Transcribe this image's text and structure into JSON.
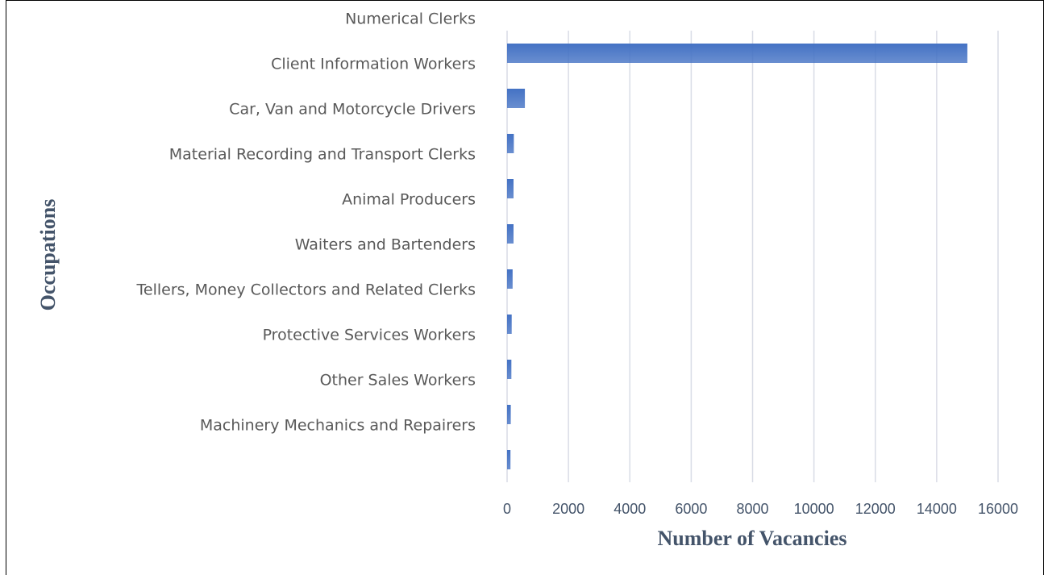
{
  "chart_data": {
    "type": "barh",
    "x_label": "Number of Vacancies",
    "y_label": "Occupations",
    "categories": [
      "Numerical Clerks",
      "Client Information Workers",
      "Car, Van and Motorcycle Drivers",
      "Material Recording and Transport Clerks",
      "Animal Producers",
      "Waiters and Bartenders",
      "Tellers, Money Collectors and Related Clerks",
      "Protective Services Workers",
      "Other Sales Workers",
      "Machinery Mechanics and Repairers"
    ],
    "values": [
      15000,
      580,
      220,
      210,
      210,
      180,
      150,
      140,
      120,
      110
    ],
    "color": "#4472c4",
    "xlim": [
      0,
      16000
    ],
    "xticks": [
      0,
      2000,
      4000,
      6000,
      8000,
      10000,
      12000,
      14000,
      16000
    ],
    "grid": true
  }
}
